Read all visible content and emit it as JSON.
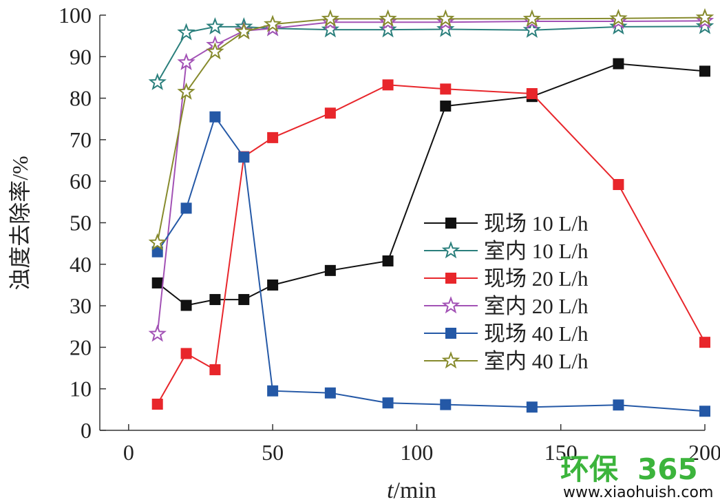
{
  "chart_data": {
    "type": "line",
    "xlabel_italic": "t",
    "xlabel_unit": "/min",
    "ylabel": "浊度去除率/%",
    "xlim": [
      -10,
      200
    ],
    "ylim": [
      0,
      100
    ],
    "x_ticks": [
      0,
      50,
      100,
      150,
      200
    ],
    "y_ticks": [
      0,
      10,
      20,
      30,
      40,
      50,
      60,
      70,
      80,
      90,
      100
    ],
    "legend_position": "center-right",
    "grid": false,
    "series": [
      {
        "name": "现场 10 L/h",
        "marker": "square",
        "color": "#111111",
        "x": [
          10,
          20,
          30,
          40,
          50,
          70,
          90,
          110,
          140,
          170,
          200
        ],
        "values": [
          35.5,
          30.1,
          31.5,
          31.5,
          35.0,
          38.5,
          40.8,
          78.1,
          80.4,
          88.3,
          86.5
        ]
      },
      {
        "name": "室内 10 L/h",
        "marker": "star",
        "color": "#2a7f7c",
        "x": [
          10,
          20,
          30,
          40,
          50,
          70,
          90,
          110,
          140,
          170,
          200
        ],
        "values": [
          83.8,
          95.8,
          97.2,
          97.2,
          96.8,
          96.5,
          96.5,
          96.6,
          96.4,
          97.2,
          97.3
        ]
      },
      {
        "name": "现场 20 L/h",
        "marker": "square",
        "color": "#e8262b",
        "x": [
          10,
          20,
          30,
          40,
          50,
          70,
          90,
          110,
          140,
          170,
          200
        ],
        "values": [
          6.3,
          18.5,
          14.6,
          65.9,
          70.5,
          76.4,
          83.2,
          82.2,
          81.1,
          59.2,
          21.2
        ]
      },
      {
        "name": "室内 20 L/h",
        "marker": "star",
        "color": "#a251b5",
        "x": [
          10,
          20,
          30,
          40,
          50,
          70,
          90,
          110,
          140,
          170,
          200
        ],
        "values": [
          23.2,
          88.6,
          92.8,
          96.2,
          96.8,
          98.3,
          98.3,
          98.3,
          98.5,
          98.5,
          98.6
        ]
      },
      {
        "name": "现场 40 L/h",
        "marker": "square",
        "color": "#2458a6",
        "x": [
          10,
          20,
          30,
          40,
          50,
          70,
          90,
          110,
          140,
          170,
          200
        ],
        "values": [
          43.0,
          53.5,
          75.5,
          65.8,
          9.5,
          9.0,
          6.6,
          6.2,
          5.6,
          6.1,
          4.6
        ]
      },
      {
        "name": "室内 40 L/h",
        "marker": "star",
        "color": "#868a2c",
        "x": [
          10,
          20,
          30,
          40,
          50,
          70,
          90,
          110,
          140,
          170,
          200
        ],
        "values": [
          45.2,
          81.5,
          91.2,
          96.0,
          97.8,
          99.1,
          99.1,
          99.1,
          99.1,
          99.2,
          99.4
        ]
      }
    ]
  },
  "watermark": {
    "text_cn": "环保",
    "text_num": "365",
    "url": "www.xiaohuish.com",
    "color_green": "#3cb43c"
  }
}
